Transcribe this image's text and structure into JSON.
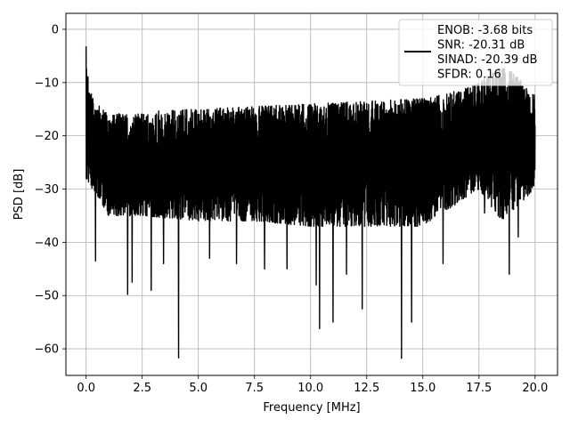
{
  "chart_data": {
    "type": "line",
    "title": "",
    "xlabel": "Frequency [MHz]",
    "ylabel": "PSD [dB]",
    "xlim": [
      -0.9,
      21.0
    ],
    "ylim": [
      -65,
      3
    ],
    "grid": true,
    "legend_position": "top-right",
    "x_ticks": [
      0.0,
      2.5,
      5.0,
      7.5,
      10.0,
      12.5,
      15.0,
      17.5,
      20.0
    ],
    "x_tick_labels": [
      "0.0",
      "2.5",
      "5.0",
      "7.5",
      "10.0",
      "12.5",
      "15.0",
      "17.5",
      "20.0"
    ],
    "y_ticks": [
      0,
      -10,
      -20,
      -30,
      -40,
      -50,
      -60
    ],
    "y_tick_labels": [
      "0",
      "−10",
      "−20",
      "−30",
      "−40",
      "−50",
      "−60"
    ],
    "legend": {
      "lines": [
        "ENOB: -3.68 bits",
        "SNR: -20.31 dB",
        "SINAD: -20.39 dB",
        "SFDR: 0.16"
      ]
    },
    "series": [
      {
        "color": "#000000",
        "x_range": [
          0.0,
          20.0
        ],
        "peak": [
          0.0,
          -3.2
        ],
        "dips": [
          [
            0.42,
            -43.5
          ],
          [
            1.85,
            -49.8
          ],
          [
            2.05,
            -47.5
          ],
          [
            2.9,
            -49.0
          ],
          [
            3.45,
            -44.0
          ],
          [
            4.12,
            -61.7
          ],
          [
            5.5,
            -43.0
          ],
          [
            6.7,
            -44.0
          ],
          [
            7.95,
            -45.0
          ],
          [
            8.95,
            -45.0
          ],
          [
            10.25,
            -48.0
          ],
          [
            10.4,
            -56.2
          ],
          [
            11.0,
            -55.0
          ],
          [
            11.6,
            -46.0
          ],
          [
            12.3,
            -52.5
          ],
          [
            14.05,
            -61.8
          ],
          [
            14.5,
            -55.0
          ],
          [
            15.9,
            -44.0
          ],
          [
            17.75,
            -34.5
          ],
          [
            18.85,
            -46.0
          ],
          [
            19.25,
            -39.0
          ]
        ],
        "upper_envelope": [
          [
            0.0,
            -3.2
          ],
          [
            0.1,
            -10.0
          ],
          [
            0.3,
            -13.0
          ],
          [
            1.0,
            -16.0
          ],
          [
            2.5,
            -15.5
          ],
          [
            5.0,
            -15.0
          ],
          [
            7.5,
            -14.5
          ],
          [
            10.0,
            -14.0
          ],
          [
            12.5,
            -13.5
          ],
          [
            15.0,
            -13.0
          ],
          [
            17.0,
            -11.0
          ],
          [
            17.5,
            -10.0
          ],
          [
            18.0,
            -8.5
          ],
          [
            18.5,
            -7.0
          ],
          [
            19.0,
            -8.0
          ],
          [
            20.0,
            -12.5
          ]
        ],
        "lower_envelope": [
          [
            0.0,
            -28.0
          ],
          [
            1.0,
            -35.0
          ],
          [
            2.5,
            -35.0
          ],
          [
            5.0,
            -36.0
          ],
          [
            7.5,
            -36.0
          ],
          [
            10.0,
            -37.0
          ],
          [
            12.5,
            -37.0
          ],
          [
            15.0,
            -37.0
          ],
          [
            17.5,
            -30.0
          ],
          [
            18.5,
            -36.0
          ],
          [
            20.0,
            -30.0
          ]
        ]
      }
    ]
  }
}
